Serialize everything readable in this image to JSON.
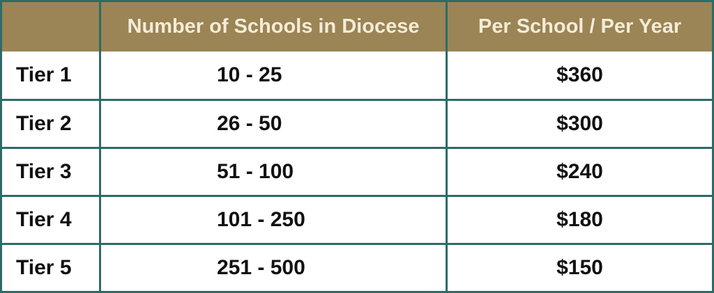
{
  "table": {
    "headers": [
      "",
      "Number of Schools in Diocese",
      "Per School / Per Year"
    ],
    "rows": [
      {
        "tier": "Tier 1",
        "schools": "10 - 25",
        "price": "$360"
      },
      {
        "tier": "Tier 2",
        "schools": "26 - 50",
        "price": "$300"
      },
      {
        "tier": "Tier 3",
        "schools": "51 - 100",
        "price": "$240"
      },
      {
        "tier": "Tier 4",
        "schools": "101 - 250",
        "price": "$180"
      },
      {
        "tier": "Tier 5",
        "schools": "251 - 500",
        "price": "$150"
      }
    ]
  },
  "colors": {
    "header_bg": "#9b8455",
    "header_text": "#f3ecd8",
    "border": "#2e6b66",
    "body_text": "#111111"
  }
}
